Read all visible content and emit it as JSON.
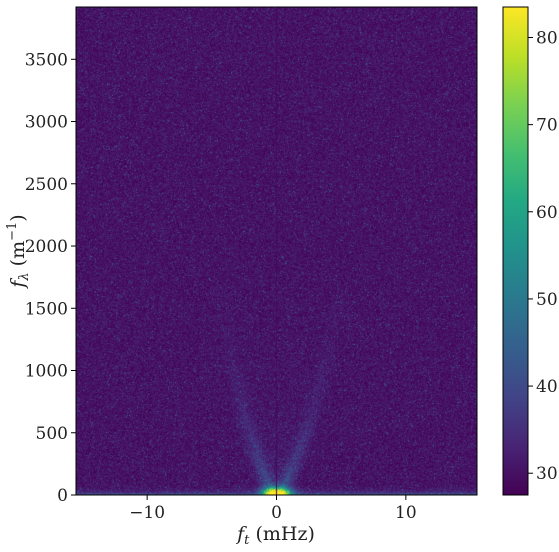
{
  "chart_data": {
    "type": "heatmap",
    "title": "",
    "xlabel": {
      "main": "f",
      "sub": "t",
      "unit": " (mHz)"
    },
    "ylabel": {
      "main": "f",
      "sub": "λ",
      "unit_open": " (m",
      "unit_sup": "−1",
      "unit_close": ")"
    },
    "xlim": [
      -15.5,
      15.5
    ],
    "ylim": [
      0,
      3920
    ],
    "x_ticks": [
      {
        "value": -10,
        "label": "−10"
      },
      {
        "value": 0,
        "label": "0"
      },
      {
        "value": 10,
        "label": "10"
      }
    ],
    "y_ticks": [
      {
        "value": 0,
        "label": "0"
      },
      {
        "value": 500,
        "label": "500"
      },
      {
        "value": 1000,
        "label": "1000"
      },
      {
        "value": 1500,
        "label": "1500"
      },
      {
        "value": 2000,
        "label": "2000"
      },
      {
        "value": 2500,
        "label": "2500"
      },
      {
        "value": 3000,
        "label": "3000"
      },
      {
        "value": 3500,
        "label": "3500"
      }
    ],
    "colorbar": {
      "colormap": "viridis",
      "range": [
        27.5,
        83.5
      ],
      "ticks": [
        {
          "value": 30,
          "label": "30"
        },
        {
          "value": 40,
          "label": "40"
        },
        {
          "value": 50,
          "label": "50"
        },
        {
          "value": 60,
          "label": "60"
        },
        {
          "value": 70,
          "label": "70"
        },
        {
          "value": 80,
          "label": "80"
        }
      ]
    },
    "features": {
      "background_level": 30,
      "peak_level": 83,
      "peak_location": {
        "x": 0,
        "y": 20
      },
      "ridge_branches": [
        {
          "name": "",
          "points": [
            [
              -0.6,
              60
            ],
            [
              -1.5,
              300
            ],
            [
              -2.5,
              650
            ],
            [
              -3.6,
              1150
            ],
            [
              -4.6,
              1700
            ]
          ]
        },
        {
          "name": "",
          "points": [
            [
              0.6,
              60
            ],
            [
              1.6,
              300
            ],
            [
              2.8,
              650
            ],
            [
              4.0,
              1150
            ],
            [
              5.2,
              1700
            ]
          ]
        }
      ],
      "central_line_x": 0
    }
  },
  "colors": {
    "viridis": [
      "#440154",
      "#482475",
      "#414487",
      "#355f8d",
      "#2a788e",
      "#21918c",
      "#22a884",
      "#44bf70",
      "#7ad151",
      "#bddf26",
      "#fde725"
    ],
    "axis": "#000000",
    "text": "#222222"
  }
}
